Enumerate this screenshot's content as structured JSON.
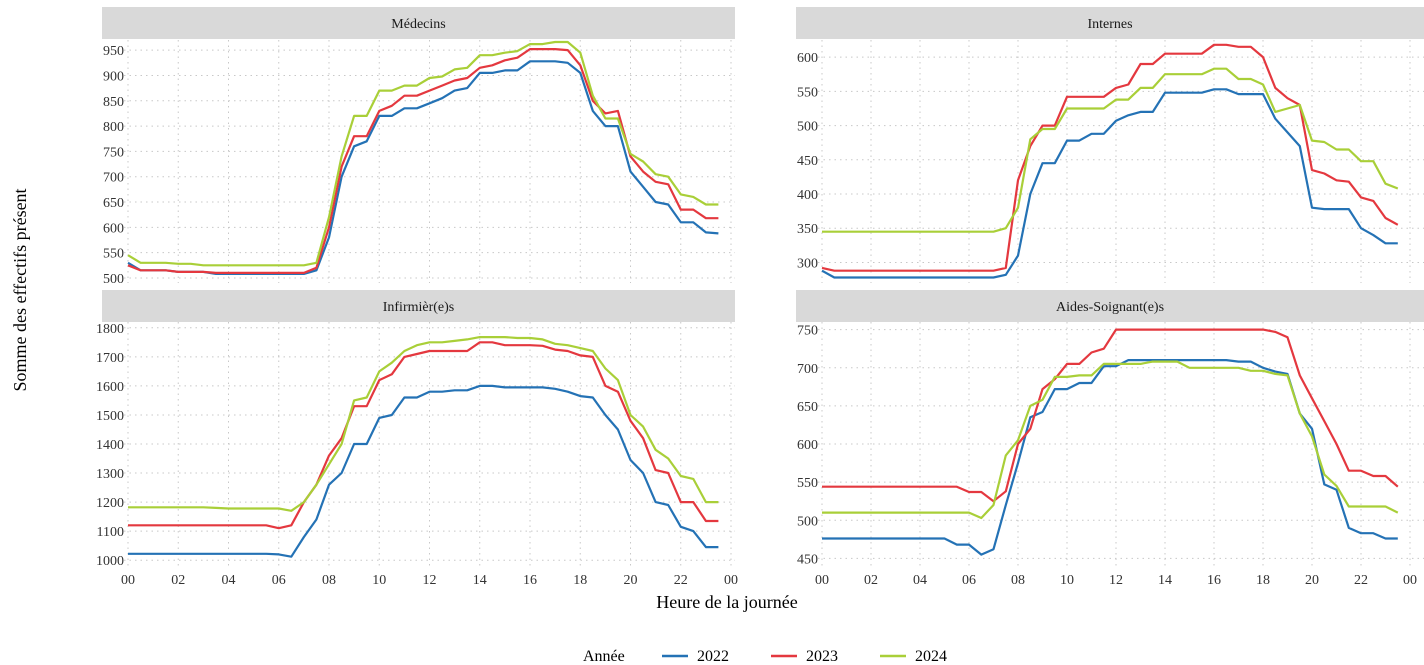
{
  "chart_data": {
    "type": "line",
    "xlabel": "Heure de la journée",
    "ylabel": "Somme des effectifs présent",
    "legend": {
      "title": "Année",
      "placement": "bottom",
      "entries": [
        "2022",
        "2023",
        "2024"
      ]
    },
    "colors": {
      "2022": "#2472b5",
      "2023": "#e4383f",
      "2024": "#a9cf38"
    },
    "x_ticks": [
      "00",
      "02",
      "04",
      "06",
      "08",
      "10",
      "12",
      "14",
      "16",
      "18",
      "20",
      "22",
      "00"
    ],
    "xlim": [
      0,
      24
    ],
    "x_hours": [
      0,
      0.5,
      1,
      1.5,
      2,
      2.5,
      3,
      3.5,
      4,
      4.5,
      5,
      5.5,
      6,
      6.5,
      7,
      7.5,
      8,
      8.5,
      9,
      9.5,
      10,
      10.5,
      11,
      11.5,
      12,
      12.5,
      13,
      13.5,
      14,
      14.5,
      15,
      15.5,
      16,
      16.5,
      17,
      17.5,
      18,
      18.5,
      19,
      19.5,
      20,
      20.5,
      21,
      21.5,
      22,
      22.5,
      23,
      23.5
    ],
    "panels": [
      {
        "title": "Médecins",
        "yticks": [
          500,
          550,
          600,
          650,
          700,
          750,
          800,
          850,
          900,
          950
        ],
        "ylim": [
          490,
          970
        ],
        "series": [
          {
            "name": "2022",
            "values": [
              530,
              515,
              515,
              515,
              512,
              512,
              512,
              508,
              508,
              508,
              508,
              508,
              508,
              508,
              508,
              515,
              580,
              700,
              760,
              770,
              820,
              820,
              835,
              835,
              845,
              855,
              870,
              875,
              905,
              905,
              910,
              910,
              928,
              928,
              928,
              925,
              905,
              830,
              800,
              800,
              710,
              680,
              650,
              645,
              610,
              610,
              590,
              588
            ]
          },
          {
            "name": "2023",
            "values": [
              525,
              515,
              515,
              515,
              512,
              512,
              512,
              510,
              510,
              510,
              510,
              510,
              510,
              510,
              510,
              520,
              600,
              720,
              780,
              780,
              830,
              840,
              860,
              860,
              870,
              880,
              890,
              895,
              915,
              920,
              930,
              935,
              952,
              952,
              952,
              950,
              920,
              850,
              825,
              830,
              740,
              710,
              690,
              685,
              635,
              635,
              618,
              618
            ]
          },
          {
            "name": "2024",
            "values": [
              545,
              530,
              530,
              530,
              528,
              528,
              525,
              525,
              525,
              525,
              525,
              525,
              525,
              525,
              525,
              530,
              620,
              740,
              820,
              820,
              870,
              870,
              880,
              880,
              895,
              898,
              912,
              915,
              940,
              940,
              945,
              948,
              962,
              962,
              966,
              966,
              945,
              860,
              815,
              815,
              745,
              730,
              705,
              700,
              665,
              660,
              645,
              645
            ]
          }
        ]
      },
      {
        "title": "Internes",
        "yticks": [
          300,
          350,
          400,
          450,
          500,
          550,
          600
        ],
        "ylim": [
          270,
          625
        ],
        "series": [
          {
            "name": "2022",
            "values": [
              288,
              278,
              278,
              278,
              278,
              278,
              278,
              278,
              278,
              278,
              278,
              278,
              278,
              278,
              278,
              282,
              310,
              400,
              445,
              445,
              478,
              478,
              488,
              488,
              507,
              515,
              520,
              520,
              548,
              548,
              548,
              548,
              553,
              553,
              546,
              546,
              546,
              510,
              490,
              470,
              380,
              378,
              378,
              378,
              350,
              340,
              328,
              328
            ]
          },
          {
            "name": "2023",
            "values": [
              292,
              288,
              288,
              288,
              288,
              288,
              288,
              288,
              288,
              288,
              288,
              288,
              288,
              288,
              288,
              292,
              420,
              470,
              500,
              500,
              542,
              542,
              542,
              542,
              555,
              560,
              590,
              590,
              605,
              605,
              605,
              605,
              618,
              618,
              615,
              615,
              600,
              555,
              540,
              530,
              435,
              430,
              420,
              418,
              395,
              390,
              365,
              355
            ]
          },
          {
            "name": "2024",
            "values": [
              345,
              345,
              345,
              345,
              345,
              345,
              345,
              345,
              345,
              345,
              345,
              345,
              345,
              345,
              345,
              350,
              380,
              480,
              495,
              495,
              525,
              525,
              525,
              525,
              538,
              538,
              555,
              555,
              575,
              575,
              575,
              575,
              583,
              583,
              568,
              568,
              560,
              520,
              525,
              530,
              478,
              476,
              465,
              465,
              448,
              448,
              415,
              408
            ]
          }
        ]
      },
      {
        "title": "Infirmièr(e)s",
        "yticks": [
          1000,
          1100,
          1200,
          1300,
          1400,
          1500,
          1600,
          1700,
          1800
        ],
        "ylim": [
          980,
          1820
        ],
        "series": [
          {
            "name": "2022",
            "values": [
              1022,
              1022,
              1022,
              1022,
              1022,
              1022,
              1022,
              1022,
              1022,
              1022,
              1022,
              1022,
              1020,
              1012,
              1080,
              1140,
              1260,
              1300,
              1400,
              1400,
              1490,
              1500,
              1560,
              1560,
              1580,
              1580,
              1585,
              1585,
              1600,
              1600,
              1595,
              1595,
              1595,
              1595,
              1590,
              1580,
              1565,
              1560,
              1500,
              1450,
              1345,
              1300,
              1200,
              1190,
              1115,
              1100,
              1045,
              1045
            ]
          },
          {
            "name": "2023",
            "values": [
              1120,
              1120,
              1120,
              1120,
              1120,
              1120,
              1120,
              1120,
              1120,
              1120,
              1120,
              1120,
              1110,
              1120,
              1200,
              1260,
              1360,
              1420,
              1530,
              1530,
              1620,
              1640,
              1700,
              1710,
              1720,
              1720,
              1720,
              1720,
              1750,
              1750,
              1740,
              1740,
              1740,
              1738,
              1725,
              1720,
              1705,
              1700,
              1600,
              1580,
              1480,
              1420,
              1310,
              1300,
              1200,
              1200,
              1135,
              1135
            ]
          },
          {
            "name": "2024",
            "values": [
              1182,
              1182,
              1182,
              1182,
              1182,
              1182,
              1182,
              1180,
              1178,
              1178,
              1178,
              1178,
              1178,
              1170,
              1200,
              1260,
              1330,
              1400,
              1550,
              1560,
              1650,
              1680,
              1720,
              1740,
              1750,
              1750,
              1755,
              1760,
              1768,
              1768,
              1768,
              1765,
              1765,
              1760,
              1745,
              1740,
              1730,
              1720,
              1660,
              1620,
              1500,
              1460,
              1380,
              1350,
              1290,
              1280,
              1200,
              1200
            ]
          }
        ]
      },
      {
        "title": "Aides-Soignant(e)s",
        "yticks": [
          450,
          500,
          550,
          600,
          650,
          700,
          750
        ],
        "ylim": [
          440,
          760
        ],
        "series": [
          {
            "name": "2022",
            "values": [
              476,
              476,
              476,
              476,
              476,
              476,
              476,
              476,
              476,
              476,
              476,
              468,
              468,
              455,
              462,
              520,
              575,
              635,
              642,
              672,
              672,
              680,
              680,
              702,
              702,
              710,
              710,
              710,
              710,
              710,
              710,
              710,
              710,
              710,
              708,
              708,
              700,
              695,
              692,
              640,
              620,
              547,
              540,
              490,
              483,
              483,
              476,
              476
            ]
          },
          {
            "name": "2023",
            "values": [
              544,
              544,
              544,
              544,
              544,
              544,
              544,
              544,
              544,
              544,
              544,
              544,
              537,
              537,
              525,
              538,
              600,
              620,
              672,
              685,
              705,
              705,
              720,
              725,
              750,
              750,
              750,
              750,
              750,
              750,
              750,
              750,
              750,
              750,
              750,
              750,
              750,
              747,
              740,
              690,
              660,
              630,
              600,
              565,
              565,
              558,
              558,
              544
            ]
          },
          {
            "name": "2024",
            "values": [
              510,
              510,
              510,
              510,
              510,
              510,
              510,
              510,
              510,
              510,
              510,
              510,
              510,
              503,
              520,
              585,
              605,
              650,
              658,
              688,
              688,
              690,
              690,
              705,
              705,
              705,
              705,
              708,
              708,
              708,
              700,
              700,
              700,
              700,
              700,
              696,
              696,
              692,
              690,
              640,
              610,
              560,
              545,
              518,
              518,
              518,
              518,
              510
            ]
          }
        ]
      }
    ]
  }
}
